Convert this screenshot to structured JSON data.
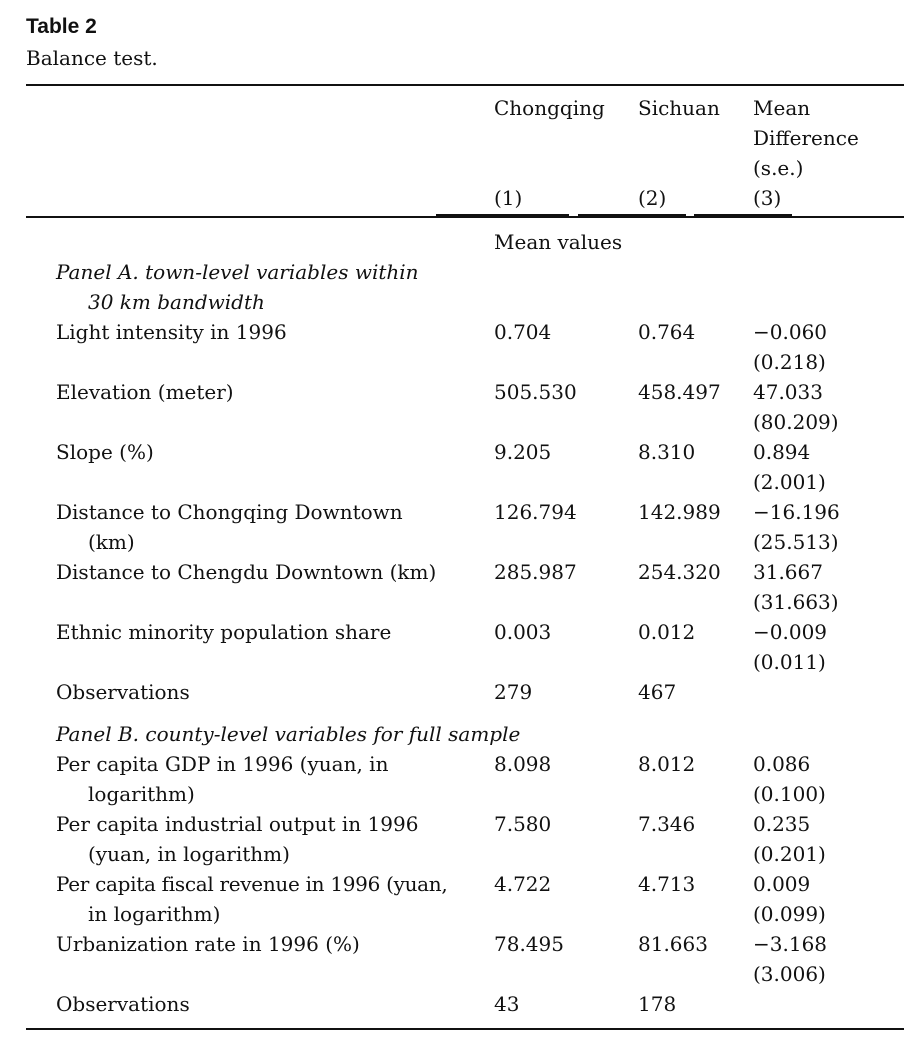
{
  "caption": {
    "title": "Table 2",
    "subtitle": "Balance test."
  },
  "header": {
    "col1_name": "Chongqing",
    "col2_name": "Sichuan",
    "col3_line1": "Mean",
    "col3_line2": "Difference",
    "col3_line3": "(s.e.)",
    "col1_num": "(1)",
    "col2_num": "(2)",
    "col3_num": "(3)"
  },
  "mean_values_label": "Mean values",
  "panel_a": {
    "title_line1": "Panel A. town-level variables within",
    "title_line2": "30 km bandwidth",
    "rows": [
      {
        "label": "Light intensity in 1996",
        "label2": "",
        "c1": "0.704",
        "c2": "0.764",
        "c3": "−0.060",
        "se": "(0.218)"
      },
      {
        "label": "Elevation (meter)",
        "label2": "",
        "c1": "505.530",
        "c2": "458.497",
        "c3": "47.033",
        "se": "(80.209)"
      },
      {
        "label": "Slope (%)",
        "label2": "",
        "c1": "9.205",
        "c2": "8.310",
        "c3": "0.894",
        "se": "(2.001)"
      },
      {
        "label": "Distance to Chongqing Downtown",
        "label2": "(km)",
        "c1": "126.794",
        "c2": "142.989",
        "c3": "−16.196",
        "se": "(25.513)"
      },
      {
        "label": "Distance to Chengdu Downtown (km)",
        "label2": "",
        "c1": "285.987",
        "c2": "254.320",
        "c3": "31.667",
        "se": "(31.663)"
      },
      {
        "label": "Ethnic minority population share",
        "label2": "",
        "c1": "0.003",
        "c2": "0.012",
        "c3": "−0.009",
        "se": "(0.011)"
      }
    ],
    "observations": {
      "label": "Observations",
      "c1": "279",
      "c2": "467"
    }
  },
  "panel_b": {
    "title": "Panel B. county-level variables for full sample",
    "rows": [
      {
        "label": "Per capita GDP in 1996 (yuan, in",
        "label2": "logarithm)",
        "c1": "8.098",
        "c2": "8.012",
        "c3": "0.086",
        "se": "(0.100)"
      },
      {
        "label": "Per capita industrial output in 1996",
        "label2": "(yuan, in logarithm)",
        "c1": "7.580",
        "c2": "7.346",
        "c3": "0.235",
        "se": "(0.201)"
      },
      {
        "label": "Per capita fiscal revenue in 1996 (yuan,",
        "label2": "in logarithm)",
        "c1": "4.722",
        "c2": "4.713",
        "c3": "0.009",
        "se": "(0.099)"
      },
      {
        "label": "Urbanization rate in 1996 (%)",
        "label2": "",
        "c1": "78.495",
        "c2": "81.663",
        "c3": "−3.168",
        "se": "(3.006)"
      }
    ],
    "observations": {
      "label": "Observations",
      "c1": "43",
      "c2": "178"
    }
  }
}
